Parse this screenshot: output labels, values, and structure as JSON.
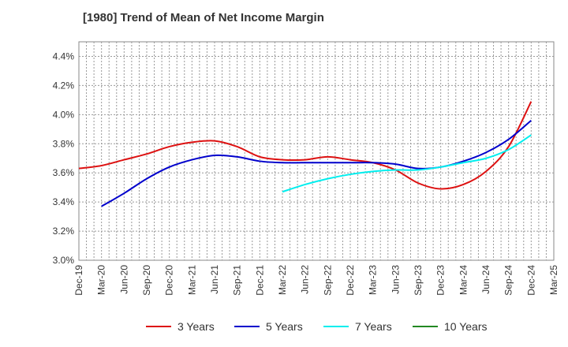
{
  "chart_data": {
    "type": "line",
    "title": "[1980]  Trend of Mean of Net Income Margin",
    "xlabel": "",
    "ylabel": "",
    "ylim": [
      3.0,
      4.5
    ],
    "y_ticks": [
      "3.0%",
      "3.2%",
      "3.4%",
      "3.6%",
      "3.8%",
      "4.0%",
      "4.2%",
      "4.4%"
    ],
    "y_tick_values": [
      3.0,
      3.2,
      3.4,
      3.6,
      3.8,
      4.0,
      4.2,
      4.4
    ],
    "x_ticks": [
      "Dec-19",
      "Mar-20",
      "Jun-20",
      "Sep-20",
      "Dec-20",
      "Mar-21",
      "Jun-21",
      "Sep-21",
      "Dec-21",
      "Mar-22",
      "Jun-22",
      "Sep-22",
      "Dec-22",
      "Mar-23",
      "Jun-23",
      "Sep-23",
      "Dec-23",
      "Mar-24",
      "Jun-24",
      "Sep-24",
      "Dec-24",
      "Mar-25"
    ],
    "grid": true,
    "legend_position": "bottom",
    "series": [
      {
        "name": "3 Years",
        "color": "#dd1111",
        "x": [
          "Dec-19",
          "Mar-20",
          "Jun-20",
          "Sep-20",
          "Dec-20",
          "Mar-21",
          "Jun-21",
          "Sep-21",
          "Dec-21",
          "Mar-22",
          "Jun-22",
          "Sep-22",
          "Dec-22",
          "Mar-23",
          "Jun-23",
          "Sep-23",
          "Dec-23",
          "Mar-24",
          "Jun-24",
          "Sep-24",
          "Dec-24"
        ],
        "values": [
          3.63,
          3.65,
          3.69,
          3.73,
          3.78,
          3.81,
          3.82,
          3.78,
          3.71,
          3.69,
          3.69,
          3.71,
          3.69,
          3.67,
          3.62,
          3.53,
          3.49,
          3.52,
          3.61,
          3.78,
          4.09
        ]
      },
      {
        "name": "5 Years",
        "color": "#0000cc",
        "x": [
          "Mar-20",
          "Jun-20",
          "Sep-20",
          "Dec-20",
          "Mar-21",
          "Jun-21",
          "Sep-21",
          "Dec-21",
          "Mar-22",
          "Jun-22",
          "Sep-22",
          "Dec-22",
          "Mar-23",
          "Jun-23",
          "Sep-23",
          "Dec-23",
          "Mar-24",
          "Jun-24",
          "Sep-24",
          "Dec-24"
        ],
        "values": [
          3.37,
          3.46,
          3.56,
          3.64,
          3.69,
          3.72,
          3.71,
          3.68,
          3.67,
          3.67,
          3.67,
          3.67,
          3.67,
          3.66,
          3.63,
          3.64,
          3.68,
          3.74,
          3.83,
          3.96
        ]
      },
      {
        "name": "7 Years",
        "color": "#00eeee",
        "x": [
          "Mar-22",
          "Jun-22",
          "Sep-22",
          "Dec-22",
          "Mar-23",
          "Jun-23",
          "Sep-23",
          "Dec-23",
          "Mar-24",
          "Jun-24",
          "Sep-24",
          "Dec-24"
        ],
        "values": [
          3.47,
          3.52,
          3.56,
          3.59,
          3.61,
          3.62,
          3.62,
          3.64,
          3.67,
          3.7,
          3.76,
          3.86
        ]
      },
      {
        "name": "10 Years",
        "color": "#228822",
        "x": [],
        "values": []
      }
    ]
  }
}
